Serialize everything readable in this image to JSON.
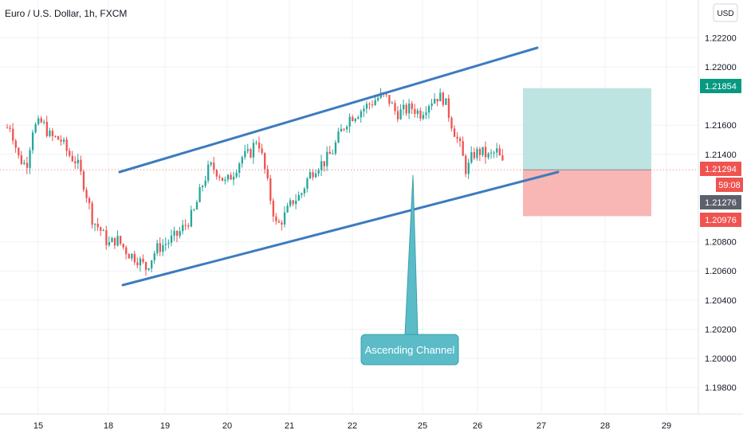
{
  "chart_title": "Euro / U.S. Dollar, 1h, FXCM",
  "currency_label": "USD",
  "colors": {
    "up": "#26a69a",
    "down": "#ef5350",
    "channel": "#3d7bbf",
    "target_zone": "#b2dfdb",
    "stop_zone": "#f7a9a7",
    "callout": "#5bbcc8",
    "grid": "#eef1f5"
  },
  "chart_data": {
    "type": "candlestick",
    "title": "Euro / U.S. Dollar, 1h, FXCM",
    "x_ticks": [
      "15",
      "18",
      "19",
      "20",
      "21",
      "22",
      "25",
      "26",
      "27",
      "28",
      "29"
    ],
    "y_ticks": [
      "1.22200",
      "1.22000",
      "1.21600",
      "1.21400",
      "1.20800",
      "1.20600",
      "1.20400",
      "1.20200",
      "1.20000",
      "1.19800"
    ],
    "y_range": [
      1.1962,
      1.225
    ],
    "grid": true,
    "price_tags": [
      {
        "label": "1.21854",
        "value": 1.21854,
        "color": "#089981"
      },
      {
        "label": "1.21294",
        "value": 1.21294,
        "color": "#ef5350"
      },
      {
        "label": "59:08",
        "value": 1.212,
        "color": "#ef5350"
      },
      {
        "label": "1.21276",
        "value": 1.21076,
        "color": "#5d606b"
      },
      {
        "label": "1.20976",
        "value": 1.2093,
        "color": "#ef5350"
      }
    ],
    "current_price": 1.21294,
    "trade_zone": {
      "entry": 1.21294,
      "target": 1.21854,
      "stop": 1.20976
    },
    "channel": {
      "upper": [
        {
          "x": "18",
          "y": 1.2129
        },
        {
          "x": "27.2",
          "y": 1.2213
        }
      ],
      "lower": [
        {
          "x": "18",
          "y": 1.2053
        },
        {
          "x": "27.2",
          "y": 1.2129
        }
      ]
    },
    "annotation": "Ascending Channel",
    "candles_close_path": [
      [
        0,
        1.2155
      ],
      [
        12,
        1.216
      ],
      [
        22,
        1.2138
      ],
      [
        32,
        1.2132
      ],
      [
        40,
        1.2158
      ],
      [
        52,
        1.2162
      ],
      [
        62,
        1.2152
      ],
      [
        75,
        1.215
      ],
      [
        85,
        1.214
      ],
      [
        95,
        1.2135
      ],
      [
        105,
        1.2118
      ],
      [
        115,
        1.2095
      ],
      [
        125,
        1.2088
      ],
      [
        135,
        1.2078
      ],
      [
        145,
        1.2082
      ],
      [
        160,
        1.2072
      ],
      [
        172,
        1.2068
      ],
      [
        182,
        1.2062
      ],
      [
        195,
        1.2075
      ],
      [
        210,
        1.208
      ],
      [
        222,
        1.2085
      ],
      [
        232,
        1.2092
      ],
      [
        242,
        1.21
      ],
      [
        252,
        1.2118
      ],
      [
        262,
        1.2132
      ],
      [
        272,
        1.2128
      ],
      [
        282,
        1.212
      ],
      [
        292,
        1.2128
      ],
      [
        302,
        1.2138
      ],
      [
        312,
        1.214
      ],
      [
        322,
        1.2152
      ],
      [
        330,
        1.2132
      ],
      [
        338,
        1.211
      ],
      [
        346,
        1.209
      ],
      [
        356,
        1.2098
      ],
      [
        366,
        1.2108
      ],
      [
        376,
        1.2112
      ],
      [
        386,
        1.2125
      ],
      [
        396,
        1.2132
      ],
      [
        406,
        1.2135
      ],
      [
        416,
        1.2142
      ],
      [
        426,
        1.2155
      ],
      [
        436,
        1.2165
      ],
      [
        446,
        1.2168
      ],
      [
        456,
        1.2172
      ],
      [
        466,
        1.2176
      ],
      [
        476,
        1.218
      ],
      [
        486,
        1.2178
      ],
      [
        496,
        1.2168
      ],
      [
        506,
        1.217
      ],
      [
        516,
        1.2172
      ],
      [
        526,
        1.2168
      ],
      [
        536,
        1.2175
      ],
      [
        546,
        1.218
      ],
      [
        556,
        1.2178
      ],
      [
        566,
        1.216
      ],
      [
        576,
        1.2145
      ],
      [
        584,
        1.2128
      ],
      [
        592,
        1.214
      ],
      [
        602,
        1.2142
      ],
      [
        612,
        1.2138
      ],
      [
        622,
        1.2142
      ],
      [
        632,
        1.213
      ]
    ]
  }
}
